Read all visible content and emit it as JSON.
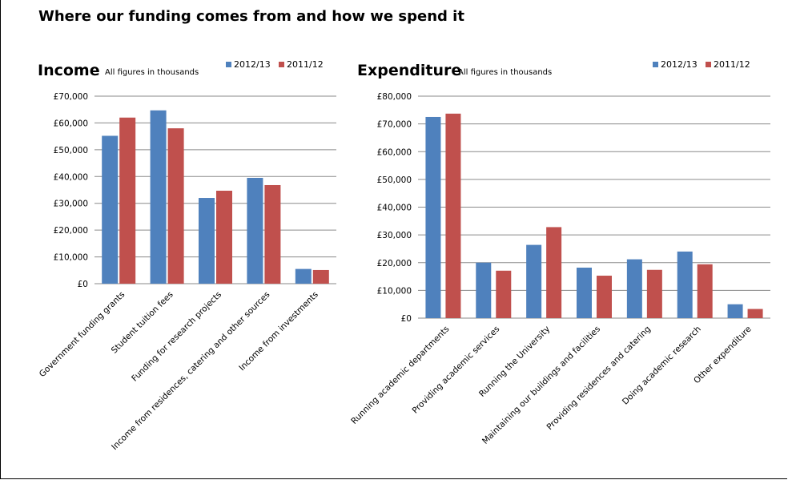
{
  "page": {
    "title": "Where our funding comes from and how we spend it"
  },
  "colors": {
    "series_2012_13": "#4f81bd",
    "series_2011_12": "#c0504d"
  },
  "chart_data": [
    {
      "type": "bar",
      "title": "Income",
      "subtitle": "All figures in thousands",
      "categories": [
        "Government funding grants",
        "Student tuition fees",
        "Funding for research projects",
        "Income from residences, catering and other sources",
        "Income from investments"
      ],
      "series": [
        {
          "name": "2012/13",
          "values": [
            55200,
            64700,
            32000,
            39500,
            5500
          ]
        },
        {
          "name": "2011/12",
          "values": [
            62000,
            58000,
            34700,
            36800,
            5100
          ]
        }
      ],
      "ylim": [
        0,
        70000
      ],
      "yticks": [
        0,
        10000,
        20000,
        30000,
        40000,
        50000,
        60000,
        70000
      ],
      "ytick_labels": [
        "£0",
        "£10,000",
        "£20,000",
        "£30,000",
        "£40,000",
        "£50,000",
        "£60,000",
        "£70,000"
      ],
      "grid": true,
      "legend": "top-right"
    },
    {
      "type": "bar",
      "title": "Expenditure",
      "subtitle": "All figures in thousands",
      "categories": [
        "Running academic departments",
        "Providing academic services",
        "Running the University",
        "Maintaining our buildings and facilities",
        "Providing residences and catering",
        "Doing academic research",
        "Other expenditure"
      ],
      "series": [
        {
          "name": "2012/13",
          "values": [
            72500,
            20000,
            26400,
            18200,
            21200,
            24000,
            5000
          ]
        },
        {
          "name": "2011/12",
          "values": [
            73700,
            17100,
            32800,
            15300,
            17400,
            19400,
            3300
          ]
        }
      ],
      "ylim": [
        0,
        80000
      ],
      "yticks": [
        0,
        10000,
        20000,
        30000,
        40000,
        50000,
        60000,
        70000,
        80000
      ],
      "ytick_labels": [
        "£0",
        "£10,000",
        "£20,000",
        "£30,000",
        "£40,000",
        "£50,000",
        "£60,000",
        "£70,000",
        "£80,000"
      ],
      "grid": true,
      "legend": "top-right"
    }
  ]
}
